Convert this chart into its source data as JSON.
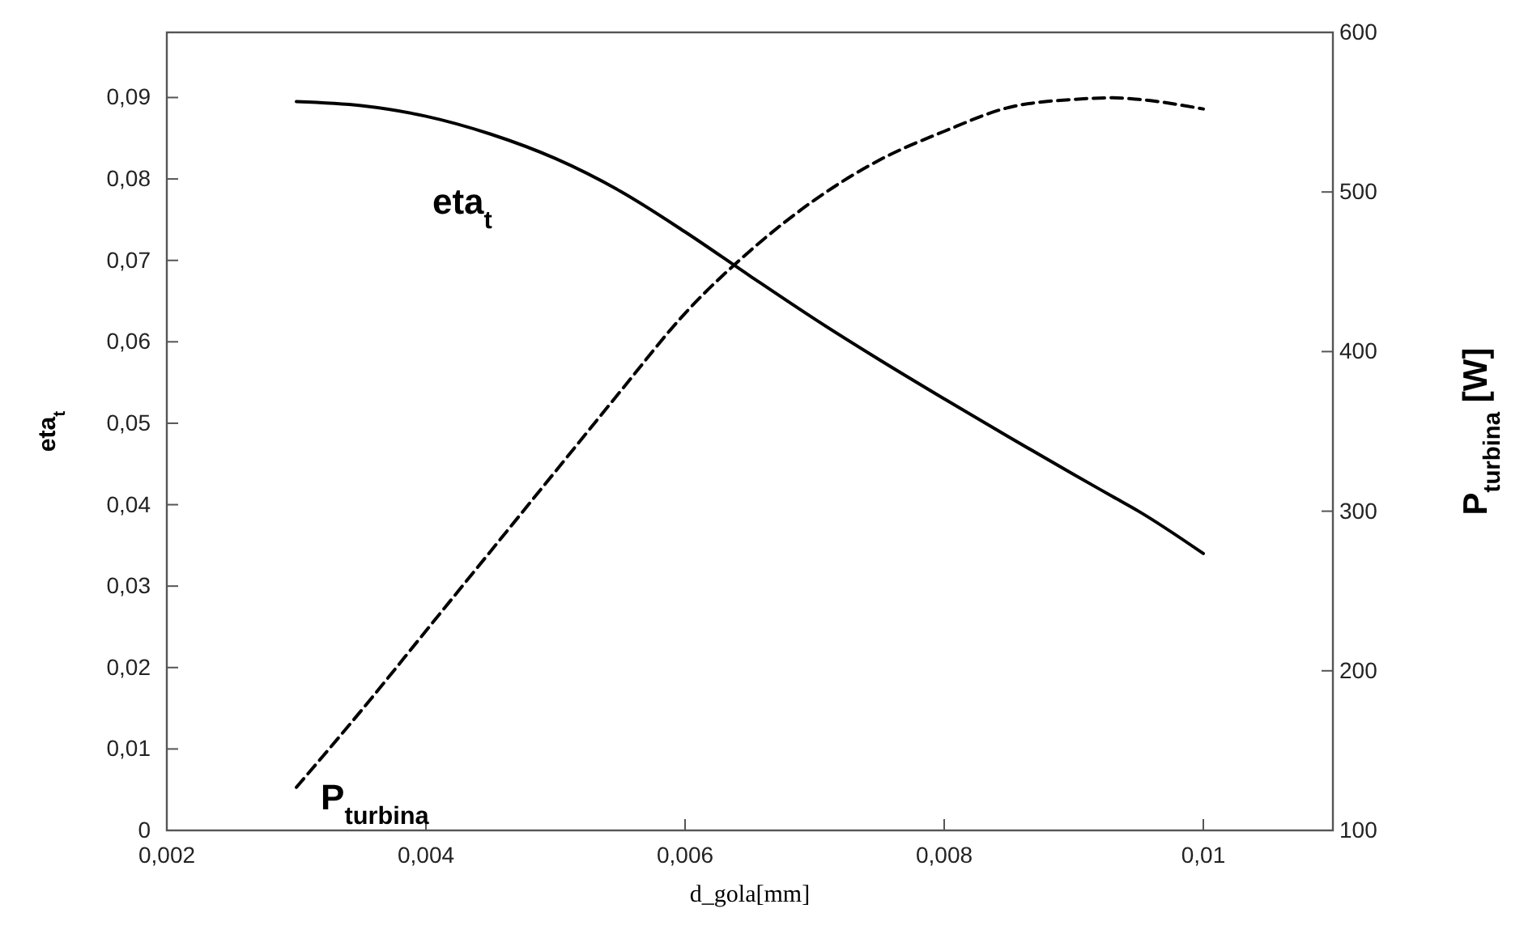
{
  "chart_data": {
    "type": "line",
    "xlabel": "d_gola[mm]",
    "ylabel": "eta$_{t}$",
    "y2label": "P$_{turbina}$  [W]",
    "x": [
      0.003,
      0.0035,
      0.004,
      0.0045,
      0.005,
      0.0055,
      0.006,
      0.0065,
      0.007,
      0.0075,
      0.008,
      0.0085,
      0.009,
      0.0093,
      0.0095,
      0.01
    ],
    "series": [
      {
        "name": "eta$_{t}$",
        "color": "#000000",
        "line_style": "solid",
        "values": [
          0.0895,
          0.089,
          0.0877,
          0.0855,
          0.0825,
          0.0785,
          0.0735,
          0.0681,
          0.0628,
          0.0578,
          0.053,
          0.0483,
          0.0437,
          0.041,
          0.0392,
          0.034
        ]
      },
      {
        "name": "P$_{turbina}$",
        "color": "#000000",
        "line_style": "dashed",
        "axis": "y2",
        "values": [
          127,
          175,
          225,
          275,
          325,
          375,
          424,
          463,
          495,
          520,
          538,
          553,
          558,
          559,
          558,
          552
        ]
      }
    ],
    "xlim": [
      0.002,
      0.011
    ],
    "xticks": [
      {
        "value": 0.002,
        "label": "0,002"
      },
      {
        "value": 0.004,
        "label": "0,004"
      },
      {
        "value": 0.006,
        "label": "0,006"
      },
      {
        "value": 0.008,
        "label": "0,008"
      },
      {
        "value": 0.01,
        "label": "0,01"
      }
    ],
    "ylim": [
      0,
      0.098
    ],
    "yticks": [
      0,
      {
        "value": 0.01,
        "label": "0,01"
      },
      {
        "value": 0.02,
        "label": "0,02"
      },
      {
        "value": 0.03,
        "label": "0,03"
      },
      {
        "value": 0.04,
        "label": "0,04"
      },
      {
        "value": 0.05,
        "label": "0,05"
      },
      {
        "value": 0.06,
        "label": "0,06"
      },
      {
        "value": 0.07,
        "label": "0,07"
      },
      {
        "value": 0.08,
        "label": "0,08"
      },
      {
        "value": 0.09,
        "label": "0,09"
      }
    ],
    "y2lim": [
      100,
      600
    ],
    "y2ticks": [
      100,
      200,
      300,
      400,
      500,
      600
    ],
    "grid": false
  }
}
